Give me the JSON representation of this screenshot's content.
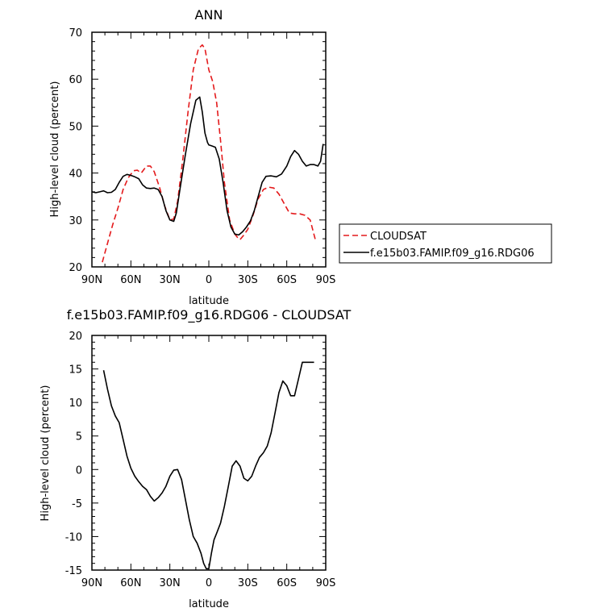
{
  "chart_data": [
    {
      "type": "line",
      "title": "ANN",
      "xlabel": "latitude",
      "ylabel": "High-level cloud (percent)",
      "xlim": [
        90,
        -90
      ],
      "ylim": [
        20,
        70
      ],
      "xticks": [
        {
          "value": 90,
          "label": "90N"
        },
        {
          "value": 60,
          "label": "60N"
        },
        {
          "value": 30,
          "label": "30N"
        },
        {
          "value": 0,
          "label": "0"
        },
        {
          "value": -30,
          "label": "30S"
        },
        {
          "value": -60,
          "label": "60S"
        },
        {
          "value": -90,
          "label": "90S"
        }
      ],
      "yticks": [
        20,
        30,
        40,
        50,
        60,
        70
      ],
      "legend": "right",
      "series": [
        {
          "name": "CLOUDSAT",
          "color": "#e41a1c",
          "dash": "dashed",
          "x": [
            82,
            78,
            74,
            70,
            66,
            62,
            58,
            55,
            52,
            48,
            45,
            42,
            38,
            34,
            30,
            27,
            24,
            20,
            16,
            12,
            8,
            5,
            3,
            0,
            -3,
            -6,
            -9,
            -12,
            -16,
            -20,
            -22,
            -24,
            -27,
            -30,
            -34,
            -38,
            -42,
            -46,
            -50,
            -54,
            -58,
            -62,
            -66,
            -70,
            -74,
            -78,
            -82
          ],
          "values": [
            21.0,
            25.0,
            29.0,
            32.5,
            36.5,
            39.0,
            40.5,
            40.6,
            40.0,
            41.5,
            41.5,
            40.3,
            37.0,
            33.0,
            30.0,
            30.2,
            34.0,
            43.0,
            53.0,
            62.0,
            66.5,
            67.3,
            66.5,
            62.0,
            59.5,
            55.0,
            47.0,
            38.0,
            30.0,
            27.0,
            26.3,
            25.8,
            26.8,
            28.0,
            31.0,
            34.5,
            36.5,
            37.0,
            36.8,
            35.5,
            33.5,
            31.5,
            31.3,
            31.3,
            31.0,
            30.0,
            25.8
          ]
        },
        {
          "name": "f.e15b03.FAMIP.f09_g16.RDG06",
          "color": "#000000",
          "dash": "solid",
          "x": [
            90,
            87,
            84,
            81,
            78,
            75,
            72,
            69,
            66,
            63,
            60,
            57,
            54,
            51,
            48,
            45,
            42,
            39,
            36,
            33,
            30,
            27,
            25,
            22,
            18,
            14,
            10,
            7,
            5,
            3,
            1,
            0,
            -2,
            -5,
            -8,
            -11,
            -14,
            -17,
            -20,
            -23,
            -26,
            -29,
            -32,
            -35,
            -38,
            -41,
            -44,
            -48,
            -52,
            -56,
            -60,
            -63,
            -66,
            -69,
            -72,
            -75,
            -78,
            -81,
            -84,
            -86,
            -88
          ],
          "values": [
            36.0,
            35.8,
            36.0,
            36.2,
            35.8,
            35.9,
            36.5,
            38.0,
            39.3,
            39.7,
            39.5,
            39.2,
            38.8,
            37.5,
            36.8,
            36.7,
            36.8,
            36.5,
            35.0,
            32.0,
            30.0,
            29.7,
            31.5,
            37.0,
            44.0,
            50.5,
            55.5,
            56.2,
            53.0,
            48.5,
            46.5,
            46.0,
            45.8,
            45.5,
            43.0,
            38.0,
            32.0,
            28.5,
            27.0,
            26.8,
            27.5,
            28.5,
            29.8,
            32.0,
            35.0,
            38.0,
            39.3,
            39.4,
            39.2,
            39.8,
            41.5,
            43.5,
            44.8,
            44.0,
            42.5,
            41.5,
            41.8,
            41.8,
            41.5,
            42.5,
            46.2
          ]
        }
      ]
    },
    {
      "type": "line",
      "title": "f.e15b03.FAMIP.f09_g16.RDG06 - CLOUDSAT",
      "xlabel": "latitude",
      "ylabel": "High-level cloud (percent)",
      "xlim": [
        90,
        -90
      ],
      "ylim": [
        -15,
        20
      ],
      "xticks": [
        {
          "value": 90,
          "label": "90N"
        },
        {
          "value": 60,
          "label": "60N"
        },
        {
          "value": 30,
          "label": "30N"
        },
        {
          "value": 0,
          "label": "0"
        },
        {
          "value": -30,
          "label": "30S"
        },
        {
          "value": -60,
          "label": "60S"
        },
        {
          "value": -90,
          "label": "90S"
        }
      ],
      "yticks": [
        -15,
        -10,
        -5,
        0,
        5,
        10,
        15,
        20
      ],
      "series": [
        {
          "color": "#000000",
          "dash": "solid",
          "x": [
            81,
            78,
            75,
            72,
            69,
            66,
            63,
            60,
            57,
            54,
            51,
            48,
            45,
            42,
            39,
            36,
            33,
            30,
            27,
            24,
            21,
            18,
            15,
            12,
            9,
            6,
            4,
            2,
            0,
            -2,
            -4,
            -6,
            -9,
            -12,
            -15,
            -18,
            -21,
            -24,
            -27,
            -30,
            -33,
            -36,
            -39,
            -42,
            -45,
            -48,
            -51,
            -54,
            -57,
            -60,
            -63,
            -66,
            -69,
            -72,
            -75,
            -78,
            -81
          ],
          "values": [
            14.8,
            12.0,
            9.5,
            8.0,
            7.0,
            4.5,
            2.0,
            0.2,
            -1.0,
            -1.8,
            -2.5,
            -3.0,
            -4.0,
            -4.7,
            -4.2,
            -3.5,
            -2.5,
            -1.0,
            -0.1,
            0.0,
            -1.5,
            -4.5,
            -7.5,
            -10.0,
            -11.0,
            -12.5,
            -14.0,
            -14.8,
            -14.8,
            -12.5,
            -10.5,
            -9.5,
            -8.0,
            -5.5,
            -2.5,
            0.5,
            1.3,
            0.5,
            -1.3,
            -1.7,
            -1.0,
            0.5,
            1.8,
            2.5,
            3.5,
            5.5,
            8.5,
            11.5,
            13.2,
            12.5,
            11.0,
            11.0,
            13.5,
            16.0,
            16.0,
            16.0,
            16.0
          ]
        }
      ]
    }
  ]
}
